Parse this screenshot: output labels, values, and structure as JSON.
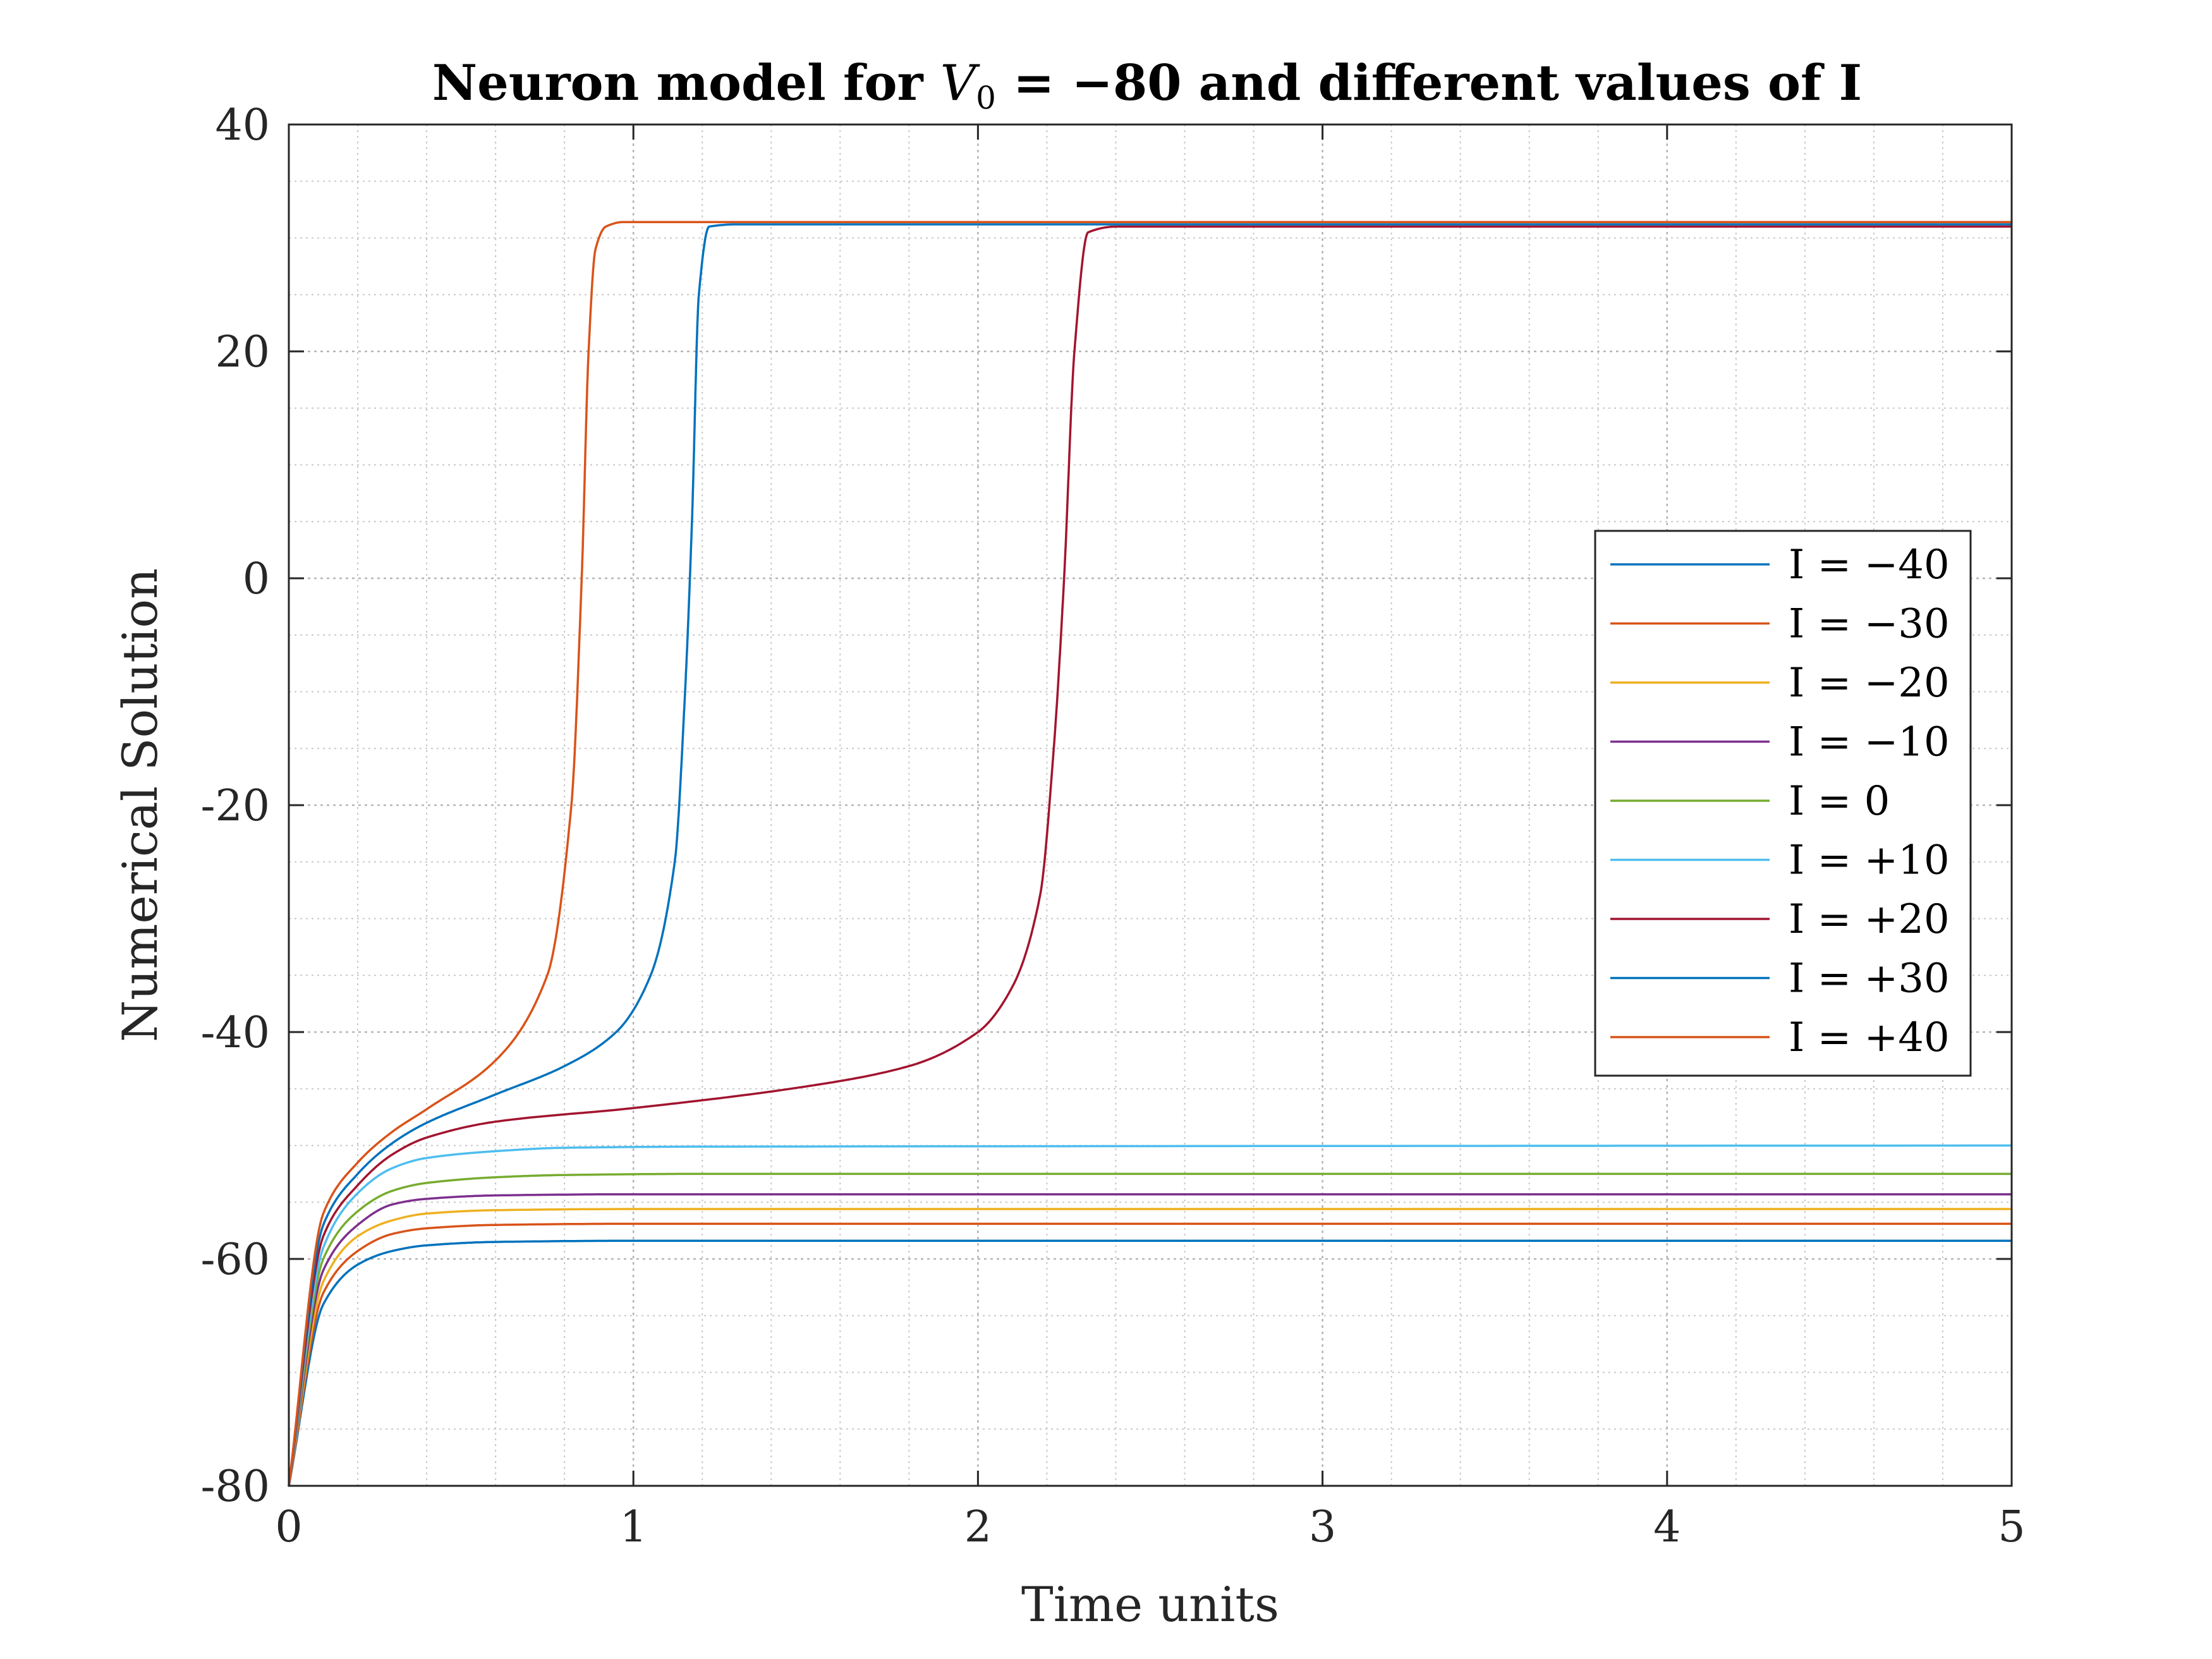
{
  "chart_data": {
    "type": "line",
    "title_parts": {
      "before": "Neuron model for ",
      "var": "V",
      "sub": "0",
      "after": " = −80 and different values of I"
    },
    "xlabel": "Time units",
    "ylabel": "Numerical Solution",
    "xlim": [
      0,
      5
    ],
    "ylim": [
      -80,
      40
    ],
    "xticks": [
      "0",
      "1",
      "2",
      "3",
      "4",
      "5"
    ],
    "yticks": [
      "-80",
      "-60",
      "-40",
      "-20",
      "0",
      "20",
      "40"
    ],
    "grid": "major and minor",
    "legend_position": "right",
    "series": [
      {
        "name": "I = −40",
        "color": "#0072BD",
        "x": [
          0,
          0.1,
          0.2,
          0.3,
          0.4,
          0.6,
          1,
          5
        ],
        "y": [
          -80,
          -64,
          -60.5,
          -59.3,
          -58.8,
          -58.5,
          -58.4,
          -58.4
        ]
      },
      {
        "name": "I = −30",
        "color": "#D95319",
        "x": [
          0,
          0.1,
          0.2,
          0.3,
          0.4,
          0.6,
          1,
          5
        ],
        "y": [
          -80,
          -63,
          -59.3,
          -57.8,
          -57.3,
          -57,
          -56.9,
          -56.9
        ]
      },
      {
        "name": "I = −20",
        "color": "#EDB120",
        "x": [
          0,
          0.1,
          0.2,
          0.3,
          0.4,
          0.6,
          1,
          5
        ],
        "y": [
          -80,
          -62,
          -58,
          -56.6,
          -56,
          -55.7,
          -55.6,
          -55.6
        ]
      },
      {
        "name": "I = −10",
        "color": "#7E2F8E",
        "x": [
          0,
          0.1,
          0.2,
          0.3,
          0.4,
          0.6,
          1,
          5
        ],
        "y": [
          -80,
          -61,
          -57,
          -55.2,
          -54.7,
          -54.4,
          -54.3,
          -54.3
        ]
      },
      {
        "name": "I = 0",
        "color": "#77AC30",
        "x": [
          0,
          0.1,
          0.2,
          0.3,
          0.4,
          0.6,
          0.8,
          1.2,
          5
        ],
        "y": [
          -80,
          -60,
          -55.8,
          -54,
          -53.3,
          -52.8,
          -52.6,
          -52.5,
          -52.5
        ]
      },
      {
        "name": "I = +10",
        "color": "#4DBEEE",
        "x": [
          0,
          0.1,
          0.2,
          0.3,
          0.4,
          0.6,
          0.8,
          1.2,
          5
        ],
        "y": [
          -80,
          -59,
          -54.2,
          -52,
          -51.1,
          -50.5,
          -50.2,
          -50.1,
          -50
        ]
      },
      {
        "name": "I = +20",
        "color": "#A2142F",
        "x": [
          0,
          0.1,
          0.2,
          0.3,
          0.4,
          0.6,
          1,
          1.5,
          1.8,
          2,
          2.1,
          2.18,
          2.22,
          2.25,
          2.28,
          2.32,
          2.4,
          5
        ],
        "y": [
          -80,
          -58,
          -53.5,
          -50.8,
          -49.3,
          -47.9,
          -46.7,
          -44.8,
          -43,
          -40,
          -36,
          -28,
          -15,
          0,
          20,
          30.5,
          31,
          31
        ]
      },
      {
        "name": "I = +30",
        "color": "#0072BD",
        "x": [
          0,
          0.1,
          0.2,
          0.3,
          0.4,
          0.6,
          0.8,
          0.95,
          1.05,
          1.12,
          1.15,
          1.17,
          1.19,
          1.22,
          1.3,
          5
        ],
        "y": [
          -80,
          -57,
          -52.5,
          -49.8,
          -48,
          -45.5,
          -43,
          -40,
          -35,
          -25,
          -10,
          5,
          25,
          31,
          31.2,
          31.2
        ]
      },
      {
        "name": "I = +40",
        "color": "#D95319",
        "x": [
          0,
          0.1,
          0.2,
          0.3,
          0.4,
          0.6,
          0.75,
          0.82,
          0.85,
          0.87,
          0.89,
          0.92,
          0.97,
          5
        ],
        "y": [
          -80,
          -56,
          -51.5,
          -48.8,
          -46.8,
          -42.5,
          -35,
          -20,
          0,
          20,
          29,
          31,
          31.4,
          31.4
        ]
      }
    ]
  }
}
